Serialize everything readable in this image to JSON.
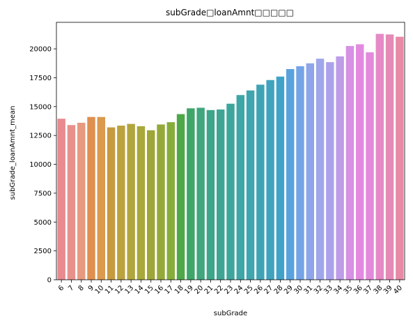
{
  "chart_data": {
    "type": "bar",
    "title": "subGrade□loanAmnt□□□□□",
    "xlabel": "subGrade",
    "ylabel": "subGrade_loanAmnt_mean",
    "ylim": [
      0,
      22300
    ],
    "yticks": [
      0,
      2500,
      5000,
      7500,
      10000,
      12500,
      15000,
      17500,
      20000
    ],
    "ytick_labels": [
      "0",
      "2500",
      "5000",
      "7500",
      "10000",
      "12500",
      "15000",
      "17500",
      "20000"
    ],
    "grid": false,
    "categories": [
      "6",
      "7",
      "8",
      "9",
      "10",
      "11",
      "12",
      "13",
      "14",
      "15",
      "16",
      "17",
      "18",
      "19",
      "20",
      "21",
      "22",
      "23",
      "24",
      "25",
      "26",
      "27",
      "28",
      "29",
      "30",
      "31",
      "32",
      "33",
      "34",
      "35",
      "36",
      "37",
      "38",
      "39",
      "40"
    ],
    "values": [
      13950,
      13400,
      13600,
      14100,
      14100,
      13200,
      13350,
      13500,
      13300,
      12950,
      13450,
      13650,
      14350,
      14850,
      14900,
      14700,
      14750,
      15250,
      16000,
      16400,
      16900,
      17300,
      17600,
      18250,
      18500,
      18750,
      19150,
      18850,
      19350,
      20250,
      20400,
      19700,
      21300,
      21250,
      21050
    ],
    "colors": [
      "#e88a8f",
      "#e8918b",
      "#e79a7f",
      "#df8f4f",
      "#db9a4e",
      "#c69b3f",
      "#bba23f",
      "#b1a63d",
      "#a8a83b",
      "#9ea639",
      "#95a93b",
      "#86ad3b",
      "#4fa848",
      "#3ea668",
      "#3fa67e",
      "#3da68a",
      "#3ea594",
      "#3da59c",
      "#3ea6a6",
      "#3fa5ae",
      "#3ea4b5",
      "#3fa3be",
      "#40a2c9",
      "#5aa2dd",
      "#75a4e6",
      "#8fa5ea",
      "#a0a6ea",
      "#aba2eb",
      "#be9ce8",
      "#d690e4",
      "#e38ae0",
      "#e28adc",
      "#e58ac6",
      "#e58ab7",
      "#e78aa6"
    ]
  }
}
